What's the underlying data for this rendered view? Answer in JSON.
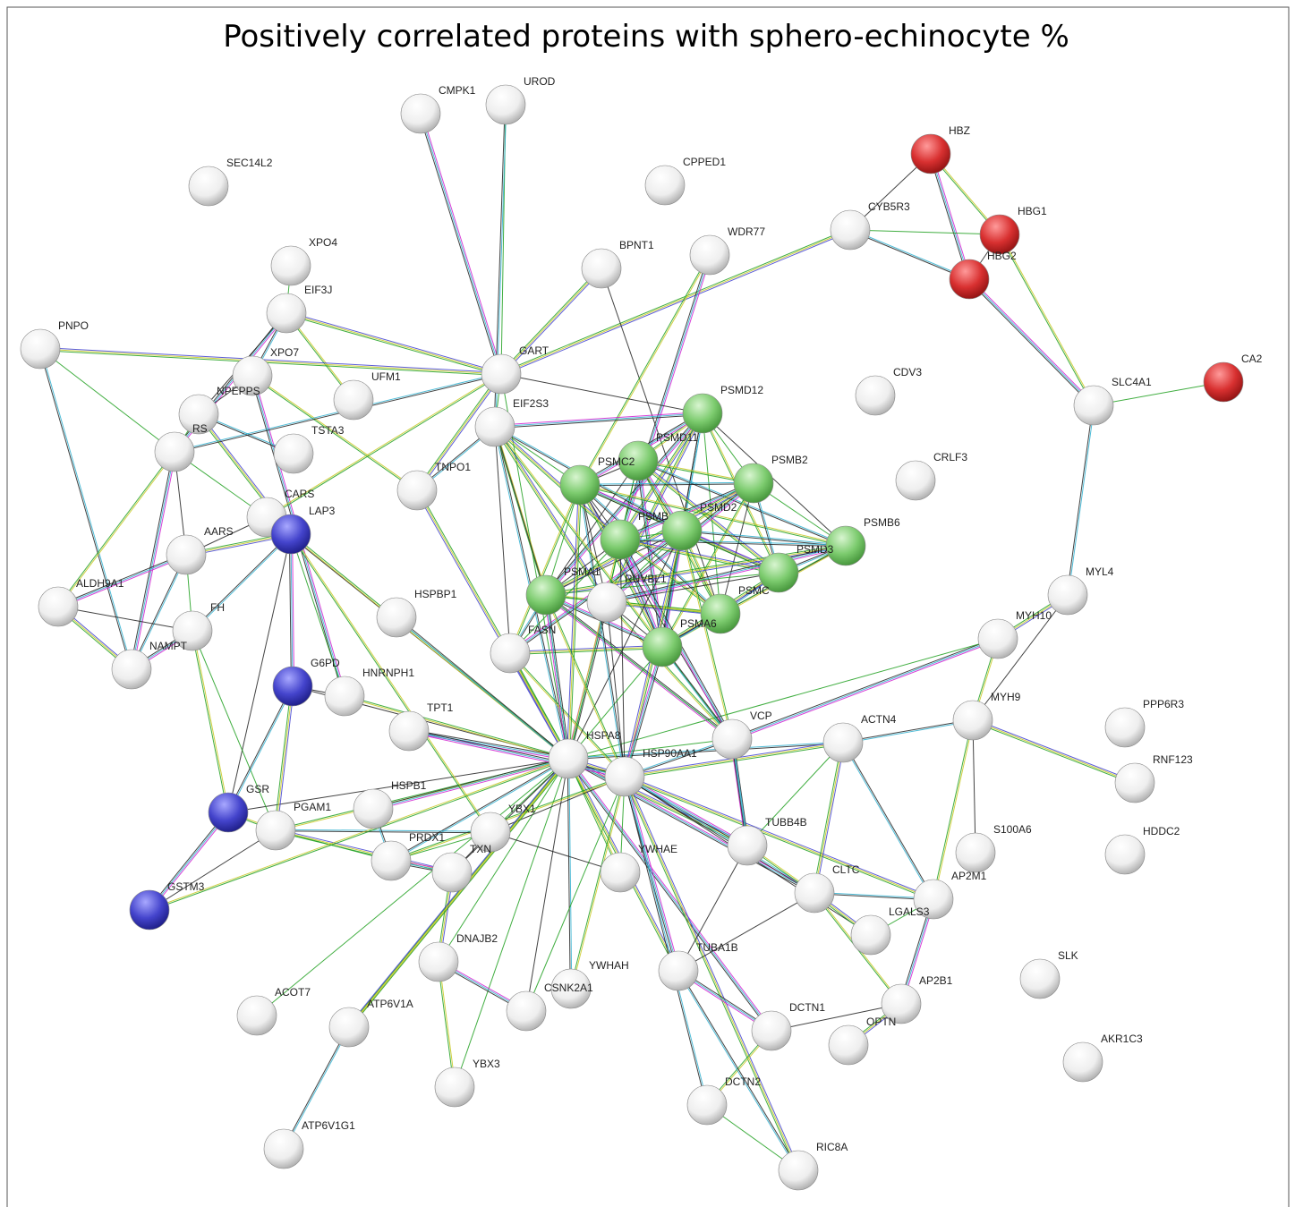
{
  "title": "Positively correlated proteins with sphero-echinocyte %",
  "nodes": [
    {
      "label": "CMPK1",
      "color": "white"
    },
    {
      "label": "UROD",
      "color": "white"
    },
    {
      "label": "SEC14L2",
      "color": "white"
    },
    {
      "label": "CPPED1",
      "color": "white"
    },
    {
      "label": "HBZ",
      "color": "red"
    },
    {
      "label": "CYB5R3",
      "color": "white"
    },
    {
      "label": "HBG1",
      "color": "red"
    },
    {
      "label": "HBG2",
      "color": "red"
    },
    {
      "label": "XPO4",
      "color": "white"
    },
    {
      "label": "WDR77",
      "color": "white"
    },
    {
      "label": "BPNT1",
      "color": "white"
    },
    {
      "label": "EIF3J",
      "color": "white"
    },
    {
      "label": "PNPO",
      "color": "white"
    },
    {
      "label": "XPO7",
      "color": "white"
    },
    {
      "label": "UFM1",
      "color": "white"
    },
    {
      "label": "GART",
      "color": "white"
    },
    {
      "label": "CDV3",
      "color": "white"
    },
    {
      "label": "CA2",
      "color": "red"
    },
    {
      "label": "SLC4A1",
      "color": "white"
    },
    {
      "label": "PSMD12",
      "color": "green"
    },
    {
      "label": "NPEPPS",
      "color": "white"
    },
    {
      "label": "EIF2S3",
      "color": "white"
    },
    {
      "label": "RS",
      "color": "white"
    },
    {
      "label": "TSTA3",
      "color": "white"
    },
    {
      "label": "PSMD11",
      "color": "green"
    },
    {
      "label": "PSMC2",
      "color": "green"
    },
    {
      "label": "PSMB2",
      "color": "green"
    },
    {
      "label": "CRLF3",
      "color": "white"
    },
    {
      "label": "TNPO1",
      "color": "white"
    },
    {
      "label": "CARS",
      "color": "white"
    },
    {
      "label": "LAP3",
      "color": "blue"
    },
    {
      "label": "PSMD2",
      "color": "green"
    },
    {
      "label": "PSMB",
      "color": "green"
    },
    {
      "label": "PSMB6",
      "color": "green"
    },
    {
      "label": "AARS",
      "color": "white"
    },
    {
      "label": "PSMD3",
      "color": "green"
    },
    {
      "label": "RUVBL1",
      "color": "white"
    },
    {
      "label": "PSMA1",
      "color": "green"
    },
    {
      "label": "PSMC",
      "color": "green"
    },
    {
      "label": "PSMA6",
      "color": "green"
    },
    {
      "label": "MYL4",
      "color": "white"
    },
    {
      "label": "ALDH9A1",
      "color": "white"
    },
    {
      "label": "HSPBP1",
      "color": "white"
    },
    {
      "label": "FH",
      "color": "white"
    },
    {
      "label": "FASN",
      "color": "white"
    },
    {
      "label": "MYH10",
      "color": "white"
    },
    {
      "label": "NAMPT",
      "color": "white"
    },
    {
      "label": "G6PD",
      "color": "blue"
    },
    {
      "label": "HNRNPH1",
      "color": "white"
    },
    {
      "label": "TPT1",
      "color": "white"
    },
    {
      "label": "VCP",
      "color": "white"
    },
    {
      "label": "ACTN4",
      "color": "white"
    },
    {
      "label": "MYH9",
      "color": "white"
    },
    {
      "label": "PPP6R3",
      "color": "white"
    },
    {
      "label": "HSPA8",
      "color": "white"
    },
    {
      "label": "HSP90AA1",
      "color": "white"
    },
    {
      "label": "RNF123",
      "color": "white"
    },
    {
      "label": "GSR",
      "color": "blue"
    },
    {
      "label": "PGAM1",
      "color": "white"
    },
    {
      "label": "HSPB1",
      "color": "white"
    },
    {
      "label": "YBX1",
      "color": "white"
    },
    {
      "label": "PRDX1",
      "color": "white"
    },
    {
      "label": "TUBB4B",
      "color": "white"
    },
    {
      "label": "S100A6",
      "color": "white"
    },
    {
      "label": "HDDC2",
      "color": "white"
    },
    {
      "label": "TXN",
      "color": "white"
    },
    {
      "label": "YWHAE",
      "color": "white"
    },
    {
      "label": "CLTC",
      "color": "white"
    },
    {
      "label": "AP2M1",
      "color": "white"
    },
    {
      "label": "GSTM3",
      "color": "blue"
    },
    {
      "label": "LGALS3",
      "color": "white"
    },
    {
      "label": "DNAJB2",
      "color": "white"
    },
    {
      "label": "YWHAH",
      "color": "white"
    },
    {
      "label": "TUBA1B",
      "color": "white"
    },
    {
      "label": "SLK",
      "color": "white"
    },
    {
      "label": "AP2B1",
      "color": "white"
    },
    {
      "label": "ACOT7",
      "color": "white"
    },
    {
      "label": "CSNK2A1",
      "color": "white"
    },
    {
      "label": "ATP6V1A",
      "color": "white"
    },
    {
      "label": "DCTN1",
      "color": "white"
    },
    {
      "label": "OPTN",
      "color": "white"
    },
    {
      "label": "AKR1C3",
      "color": "white"
    },
    {
      "label": "YBX3",
      "color": "white"
    },
    {
      "label": "DCTN2",
      "color": "white"
    },
    {
      "label": "ATP6V1G1",
      "color": "white"
    },
    {
      "label": "RIC8A",
      "color": "white"
    }
  ]
}
